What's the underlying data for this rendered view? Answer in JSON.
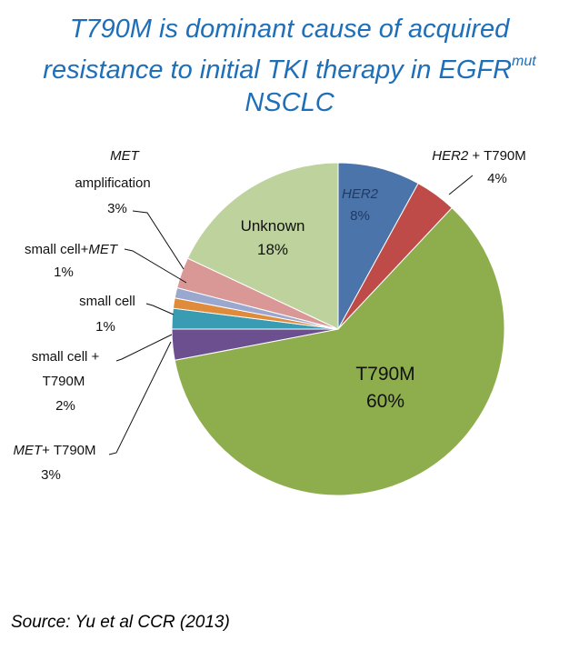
{
  "title": {
    "line1": "T790M is dominant cause of acquired",
    "line2_prefix": "resistance to initial TKI therapy in EGFR",
    "line2_sup": "mut",
    "line3": "NSCLC"
  },
  "source": "Source: Yu et al CCR (2013)",
  "chart_data": {
    "type": "pie",
    "title": "T790M is dominant cause of acquired resistance to initial TKI therapy in EGFRmut NSCLC",
    "start": "12 o'clock",
    "direction": "clockwise",
    "slices": [
      {
        "id": "her2",
        "values": 8,
        "color": "#4a74aa",
        "label": [
          {
            "t": "HER2",
            "i": true
          }
        ],
        "pct": "8%",
        "placement": "inside"
      },
      {
        "id": "her2-t790m",
        "values": 4,
        "color": "#bf4b48",
        "label": [
          {
            "t": "HER2",
            "i": true
          },
          {
            "t": " + T790M",
            "i": false
          }
        ],
        "pct": "4%",
        "placement": "outside"
      },
      {
        "id": "t790m",
        "values": 60,
        "color": "#8eae4e",
        "label": [
          {
            "t": "T790M",
            "i": false
          }
        ],
        "pct": "60%",
        "placement": "inside"
      },
      {
        "id": "met-t790m",
        "values": 3,
        "color": "#6b4f8f",
        "label": [
          {
            "t": "MET",
            "i": true
          },
          {
            "t": "+ T790M",
            "i": false
          }
        ],
        "pct": "3%",
        "placement": "outside"
      },
      {
        "id": "small-cell-t790m",
        "values": 2,
        "color": "#3a9cb3",
        "label": [
          {
            "t": "small cell +",
            "i": false
          }
        ],
        "label2": [
          {
            "t": "T790M",
            "i": false
          }
        ],
        "pct": "2%",
        "placement": "outside"
      },
      {
        "id": "small-cell",
        "values": 1,
        "color": "#e08a3c",
        "label": [
          {
            "t": "small cell",
            "i": false
          }
        ],
        "pct": "1%",
        "placement": "outside"
      },
      {
        "id": "small-cell-met",
        "values": 1,
        "color": "#9aa7cf",
        "label": [
          {
            "t": "small cell+",
            "i": false
          },
          {
            "t": "MET",
            "i": true
          }
        ],
        "pct": "1%",
        "placement": "outside"
      },
      {
        "id": "met-amplification",
        "values": 3,
        "color": "#d99795",
        "label": [
          {
            "t": "MET",
            "i": true
          }
        ],
        "label2": [
          {
            "t": "amplification",
            "i": false
          }
        ],
        "pct": "3%",
        "placement": "outside"
      },
      {
        "id": "unknown",
        "values": 18,
        "color": "#bed29e",
        "label": [
          {
            "t": "Unknown",
            "i": false
          }
        ],
        "pct": "18%",
        "placement": "inside"
      }
    ]
  }
}
